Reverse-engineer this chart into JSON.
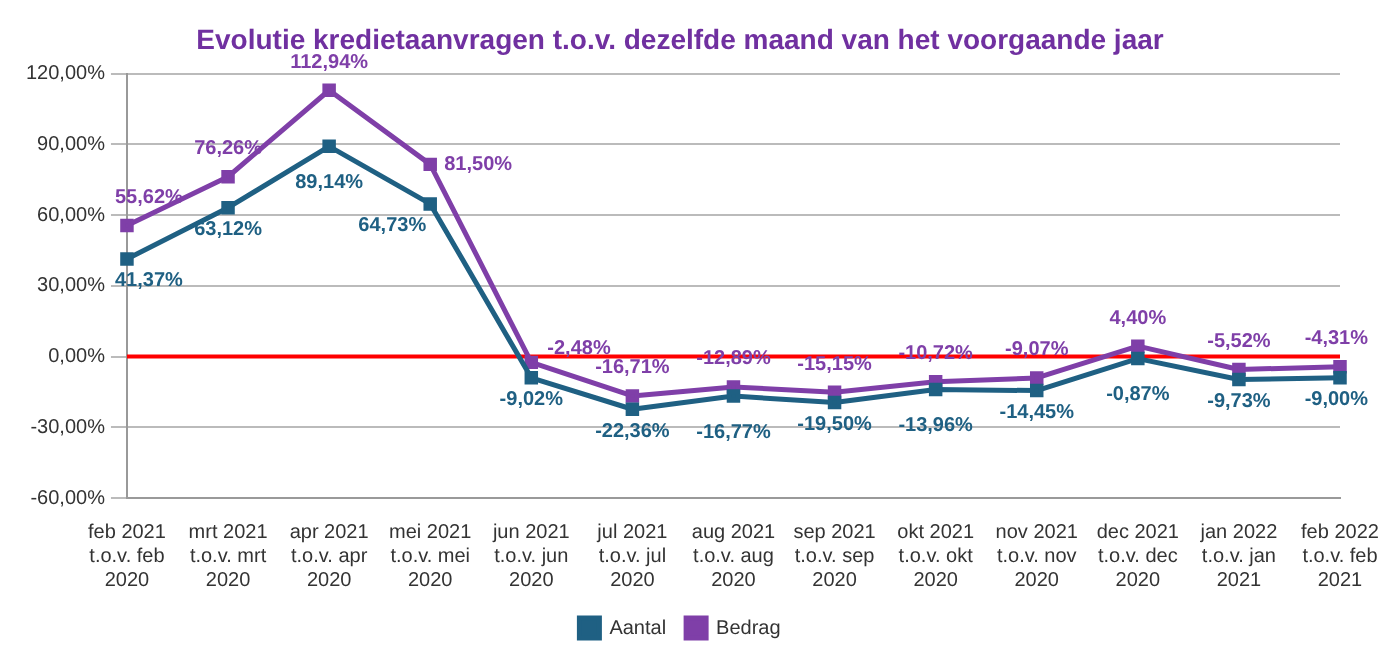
{
  "chart_data": {
    "type": "line",
    "title": "Evolutie kredietaanvragen t.o.v. dezelfde maand van het voorgaande jaar",
    "categories": [
      "feb 2021\nt.o.v. feb\n2020",
      "mrt 2021\nt.o.v. mrt\n2020",
      "apr 2021\nt.o.v. apr\n2020",
      "mei 2021\nt.o.v. mei\n2020",
      "jun 2021\nt.o.v. jun\n2020",
      "jul 2021\nt.o.v. jul\n2020",
      "aug 2021\nt.o.v. aug\n2020",
      "sep 2021\nt.o.v. sep\n2020",
      "okt 2021\nt.o.v. okt\n2020",
      "nov 2021\nt.o.v. nov\n2020",
      "dec 2021\nt.o.v. dec\n2020",
      "jan 2022\nt.o.v. jan\n2021",
      "feb 2022\nt.o.v. feb\n2021"
    ],
    "series": [
      {
        "name": "Aantal",
        "color": "#1f6083",
        "values": [
          41.37,
          63.12,
          89.14,
          64.73,
          -9.02,
          -22.36,
          -16.77,
          -19.5,
          -13.96,
          -14.45,
          -0.87,
          -9.73,
          -9.0
        ],
        "value_labels": [
          "41,37%",
          "63,12%",
          "89,14%",
          "64,73%",
          "-9,02%",
          "-22,36%",
          "-16,77%",
          "-19,50%",
          "-13,96%",
          "-14,45%",
          "-0,87%",
          "-9,73%",
          "-9,00%"
        ]
      },
      {
        "name": "Bedrag",
        "color": "#7f3fa8",
        "values": [
          55.62,
          76.26,
          112.94,
          81.5,
          -2.48,
          -16.71,
          -12.89,
          -15.15,
          -10.72,
          -9.07,
          4.4,
          -5.52,
          -4.31
        ],
        "value_labels": [
          "55,62%",
          "76,26%",
          "112,94%",
          "81,50%",
          "-2,48%",
          "-16,71%",
          "-12,89%",
          "-15,15%",
          "-10,72%",
          "-9,07%",
          "4,40%",
          "-5,52%",
          "-4,31%"
        ]
      }
    ],
    "ylim": [
      -60,
      120
    ],
    "yticks": [
      {
        "value": -60,
        "label": "-60,00%"
      },
      {
        "value": -30,
        "label": "-30,00%"
      },
      {
        "value": 0,
        "label": "0,00%"
      },
      {
        "value": 30,
        "label": "30,00%"
      },
      {
        "value": 60,
        "label": "60,00%"
      },
      {
        "value": 90,
        "label": "90,00%"
      },
      {
        "value": 120,
        "label": "120,00%"
      }
    ],
    "ref_lines": [
      {
        "axis": "y",
        "value": 0,
        "color": "#ff0000"
      }
    ],
    "grid": "y",
    "legend": "bottom",
    "marker": "square",
    "line_style": "solid"
  }
}
